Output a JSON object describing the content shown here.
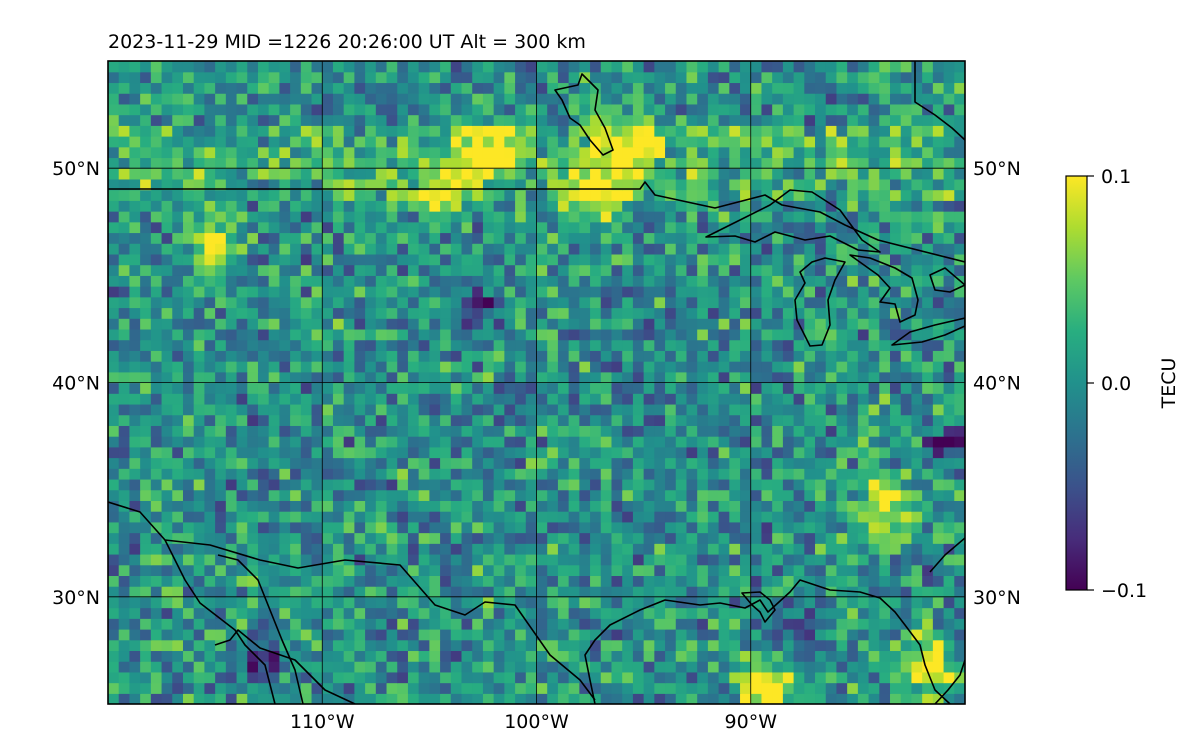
{
  "title": "2023-11-29  MID =1226    20:26:00  UT  Alt = 300 km",
  "chart_data": {
    "type": "heatmap",
    "title": "2023-11-29  MID =1226    20:26:00  UT  Alt = 300 km",
    "projection": "map (Plate Carree)",
    "lon_range": [
      -120,
      -80
    ],
    "lat_range": [
      25,
      55
    ],
    "lon_ticks": [
      -110,
      -100,
      -90
    ],
    "lon_tick_labels": [
      "110°W",
      "100°W",
      "90°W"
    ],
    "lat_ticks": [
      30,
      40,
      50
    ],
    "lat_tick_labels": [
      "30°N",
      "40°N",
      "50°N"
    ],
    "grid": true,
    "colormap": "viridis",
    "colorbar": {
      "label": "TECU",
      "vmin": -0.1,
      "vmax": 0.1,
      "ticks": [
        0.1,
        0.0,
        -0.1
      ],
      "tick_labels": [
        "0.1",
        "0.0",
        "−0.1"
      ],
      "position": "right"
    },
    "field": {
      "description": "differential TEC field, mostly near 0 with positive patches near 50N and along the Gulf coast",
      "highlights": [
        {
          "lon": -104.5,
          "lat": 48.5,
          "value": 0.09
        },
        {
          "lon": -102.5,
          "lat": 50.7,
          "value": 0.1
        },
        {
          "lon": -96.0,
          "lat": 50.7,
          "value": 0.1
        },
        {
          "lon": -115.5,
          "lat": 46.5,
          "value": 0.07
        },
        {
          "lon": -84.0,
          "lat": 34.0,
          "value": 0.09
        },
        {
          "lon": -89.5,
          "lat": 25.5,
          "value": 0.1
        },
        {
          "lon": -82.0,
          "lat": 26.5,
          "value": 0.09
        },
        {
          "lon": -97.5,
          "lat": 48.5,
          "value": 0.08
        }
      ],
      "lows": [
        {
          "lon": -81.0,
          "lat": 37.0,
          "value": -0.09
        },
        {
          "lon": -113.0,
          "lat": 27.0,
          "value": -0.09
        },
        {
          "lon": -88.0,
          "lat": 28.5,
          "value": -0.08
        },
        {
          "lon": -103.0,
          "lat": 43.5,
          "value": -0.08
        }
      ]
    }
  }
}
